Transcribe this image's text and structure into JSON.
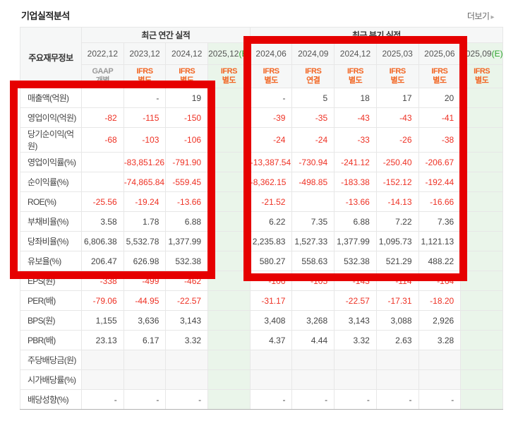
{
  "page": {
    "title": "기업실적분석",
    "more_label": "더보기",
    "more_arrow": "▸"
  },
  "colors": {
    "annotation_red": "#e60000",
    "ifrs_orange": "#f26522",
    "estimate_green": "#2ea52e",
    "negative_red": "#ee3124",
    "estimate_bg": "#eaf5ea"
  },
  "annotations": [
    {
      "name": "highlight-box-annual",
      "shape": "red-rectangle",
      "covers": "annual columns 2022,12-2024,12 rows 매출액-유보율"
    },
    {
      "name": "highlight-box-quarterly",
      "shape": "red-rectangle",
      "covers": "quarterly columns 2024,06-2025,06 rows 매출액-유보율"
    }
  ],
  "table": {
    "corner_header": "주요재무정보",
    "estimate_suffix": "(E)",
    "groups": [
      {
        "label": "최근 연간 실적",
        "span": 4
      },
      {
        "label": "최근 분기 실적",
        "span": 6
      }
    ],
    "columns": [
      {
        "period": "2022,12",
        "standard": "GAAP",
        "scope": "개별",
        "estimate": false
      },
      {
        "period": "2023,12",
        "standard": "IFRS",
        "scope": "별도",
        "estimate": false
      },
      {
        "period": "2024,12",
        "standard": "IFRS",
        "scope": "별도",
        "estimate": false
      },
      {
        "period": "2025,12",
        "standard": "IFRS",
        "scope": "별도",
        "estimate": true
      },
      {
        "period": "2024,06",
        "standard": "IFRS",
        "scope": "별도",
        "estimate": false
      },
      {
        "period": "2024,09",
        "standard": "IFRS",
        "scope": "연결",
        "estimate": false
      },
      {
        "period": "2024,12",
        "standard": "IFRS",
        "scope": "별도",
        "estimate": false
      },
      {
        "period": "2025,03",
        "standard": "IFRS",
        "scope": "별도",
        "estimate": false
      },
      {
        "period": "2025,06",
        "standard": "IFRS",
        "scope": "별도",
        "estimate": false
      },
      {
        "period": "2025,09",
        "standard": "IFRS",
        "scope": "별도",
        "estimate": true
      }
    ],
    "rows": [
      {
        "label": "매출액(억원)",
        "shaded": false,
        "values": [
          "",
          "-",
          "19",
          "",
          "-",
          "5",
          "18",
          "17",
          "20",
          ""
        ]
      },
      {
        "label": "영업이익(억원)",
        "shaded": false,
        "values": [
          "-82",
          "-115",
          "-150",
          "",
          "-39",
          "-35",
          "-43",
          "-43",
          "-41",
          ""
        ]
      },
      {
        "label": "당기순이익(억원)",
        "shaded": false,
        "values": [
          "-68",
          "-103",
          "-106",
          "",
          "-24",
          "-24",
          "-33",
          "-26",
          "-38",
          ""
        ]
      },
      {
        "label": "영업이익률(%)",
        "shaded": false,
        "values": [
          "",
          "-83,851.26",
          "-791.90",
          "",
          "-13,387.54",
          "-730.94",
          "-241.12",
          "-250.40",
          "-206.67",
          ""
        ]
      },
      {
        "label": "순이익률(%)",
        "shaded": false,
        "values": [
          "",
          "-74,865.84",
          "-559.45",
          "",
          "-8,362.15",
          "-498.85",
          "-183.38",
          "-152.12",
          "-192.44",
          ""
        ]
      },
      {
        "label": "ROE(%)",
        "shaded": false,
        "values": [
          "-25.56",
          "-19.24",
          "-13.66",
          "",
          "-21.52",
          "",
          "-13.66",
          "-14.13",
          "-16.66",
          ""
        ]
      },
      {
        "label": "부채비율(%)",
        "shaded": false,
        "values": [
          "3.58",
          "1.78",
          "6.88",
          "",
          "6.22",
          "7.35",
          "6.88",
          "7.22",
          "7.36",
          ""
        ]
      },
      {
        "label": "당좌비율(%)",
        "shaded": false,
        "values": [
          "6,806.38",
          "5,532.78",
          "1,377.99",
          "",
          "2,235.83",
          "1,527.33",
          "1,377.99",
          "1,095.73",
          "1,121.13",
          ""
        ]
      },
      {
        "label": "유보율(%)",
        "shaded": false,
        "values": [
          "206.47",
          "626.98",
          "532.38",
          "",
          "580.27",
          "558.63",
          "532.38",
          "521.29",
          "488.22",
          ""
        ]
      },
      {
        "label": "EPS(원)",
        "shaded": false,
        "values": [
          "-338",
          "-499",
          "-462",
          "",
          "-106",
          "-105",
          "-143",
          "-114",
          "-164",
          ""
        ]
      },
      {
        "label": "PER(배)",
        "shaded": false,
        "values": [
          "-79.06",
          "-44.95",
          "-22.57",
          "",
          "-31.17",
          "",
          "-22.57",
          "-17.31",
          "-18.20",
          ""
        ]
      },
      {
        "label": "BPS(원)",
        "shaded": false,
        "values": [
          "1,155",
          "3,636",
          "3,143",
          "",
          "3,408",
          "3,268",
          "3,143",
          "3,088",
          "2,926",
          ""
        ]
      },
      {
        "label": "PBR(배)",
        "shaded": false,
        "values": [
          "23.13",
          "6.17",
          "3.32",
          "",
          "4.37",
          "4.44",
          "3.32",
          "2.63",
          "3.28",
          ""
        ]
      },
      {
        "label": "주당배당금(원)",
        "shaded": true,
        "values": [
          "",
          "",
          "",
          "",
          "",
          "",
          "",
          "",
          "",
          ""
        ]
      },
      {
        "label": "시가배당률(%)",
        "shaded": true,
        "values": [
          "",
          "",
          "",
          "",
          "",
          "",
          "",
          "",
          "",
          ""
        ]
      },
      {
        "label": "배당성향(%)",
        "shaded": false,
        "values": [
          "-",
          "-",
          "-",
          "",
          "-",
          "-",
          "-",
          "-",
          "-",
          ""
        ]
      }
    ]
  }
}
